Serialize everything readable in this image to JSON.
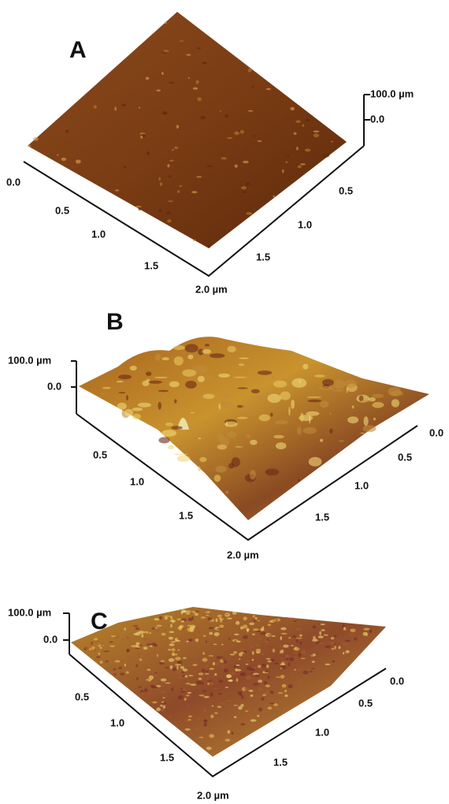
{
  "panels": [
    {
      "label": "A",
      "z_ticks": [
        "100.0 µm",
        "0.0"
      ],
      "front_ticks": [
        "0.0",
        "0.5",
        "1.0",
        "1.5",
        "2.0 µm"
      ],
      "side_ticks": [
        "0.5",
        "1.0",
        "1.5"
      ]
    },
    {
      "label": "B",
      "z_ticks": [
        "100.0 µm",
        "0.0"
      ],
      "front_ticks": [
        "0.5",
        "1.0",
        "1.5",
        "2.0 µm"
      ],
      "side_ticks": [
        "0.0",
        "0.5",
        "1.0",
        "1.5"
      ]
    },
    {
      "label": "C",
      "z_ticks": [
        "100.0 µm",
        "0.0"
      ],
      "front_ticks": [
        "0.5",
        "1.0",
        "1.5",
        "2.0 µm"
      ],
      "side_ticks": [
        "0.0",
        "0.5",
        "1.0",
        "1.5"
      ]
    }
  ]
}
